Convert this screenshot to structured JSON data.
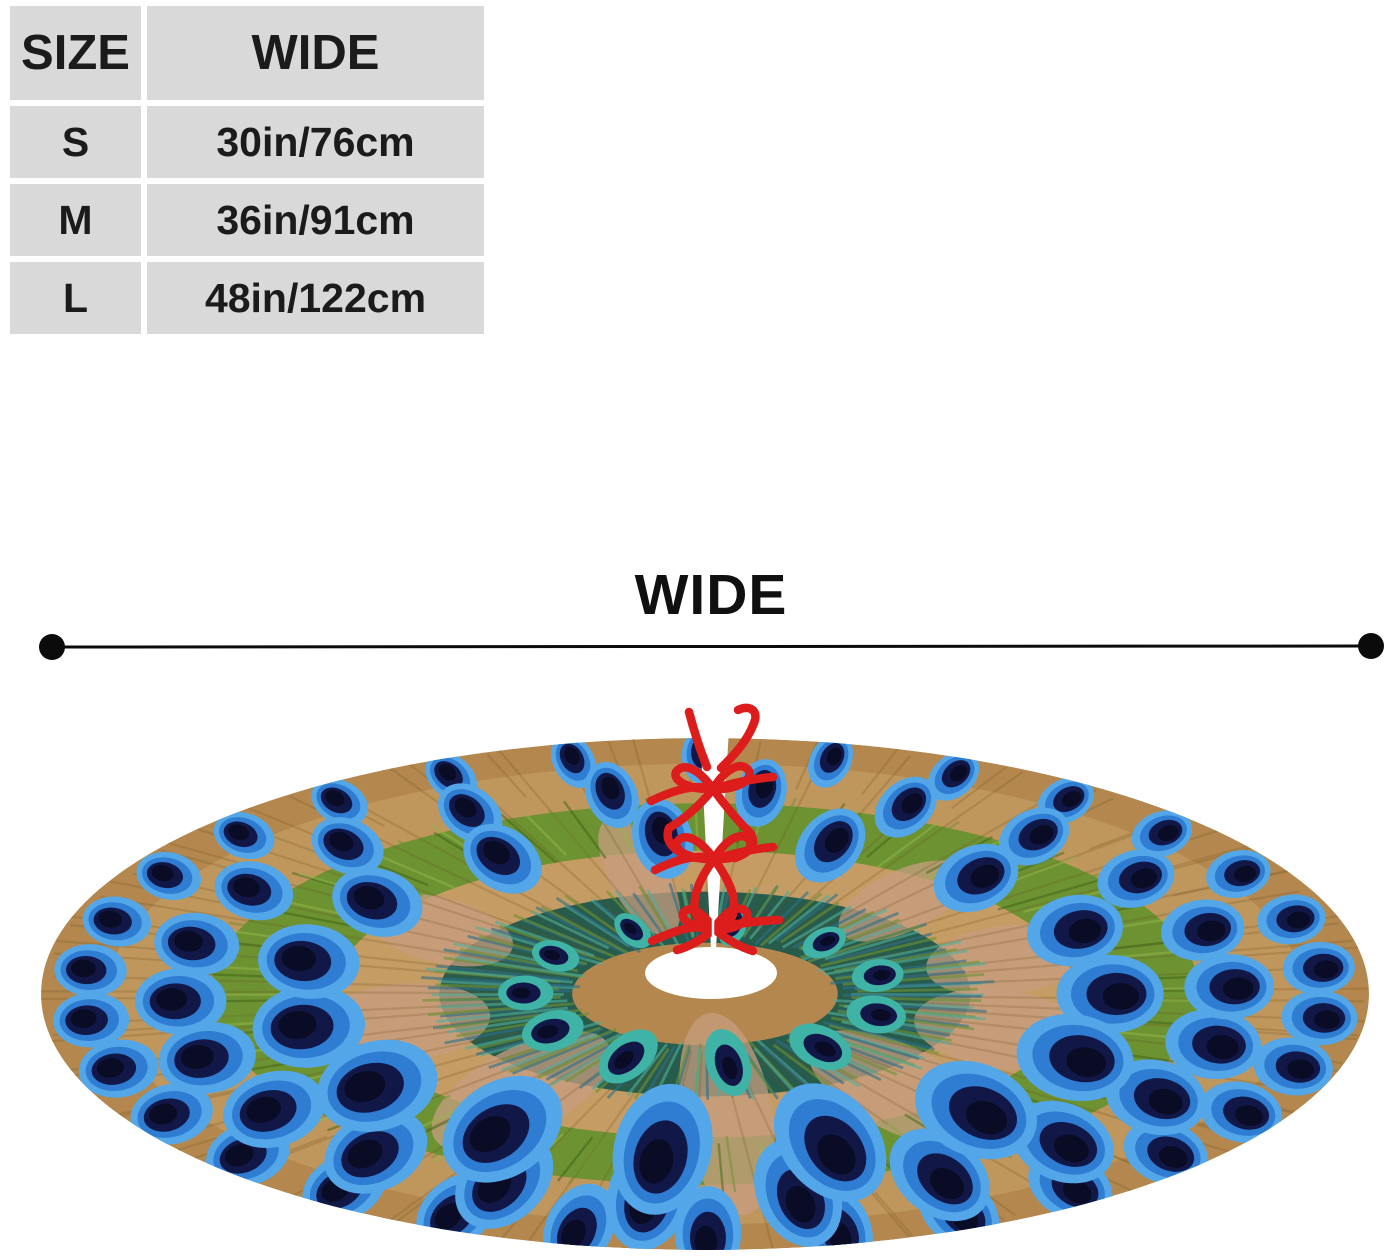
{
  "size_table": {
    "headers": [
      "SIZE",
      "WIDE"
    ],
    "rows": [
      {
        "size": "S",
        "wide": "30in/76cm"
      },
      {
        "size": "M",
        "wide": "36in/91cm"
      },
      {
        "size": "L",
        "wide": "48in/122cm"
      }
    ]
  },
  "measurement": {
    "label": "WIDE"
  },
  "product": {
    "type": "christmas-tree-skirt",
    "pattern": "peacock-feathers",
    "features": [
      "center-hole",
      "back-slit",
      "red-ribbon-ties"
    ],
    "colors": {
      "table_cell_bg": "#d9d9d9",
      "table_text": "#1b1b1b",
      "line_black": "#0b0b0b",
      "ribbon_red": "#dd1c1c",
      "hole_white": "#ffffff",
      "base_tan": "#b3874e",
      "tan_light": "#c59c63",
      "pink_patch": "#c79e80",
      "green_band": "#6d9232",
      "green_light": "#93b84a",
      "green_dark": "#3f6418",
      "teal_band": "#275c4d",
      "teal_streak": "#4fae9b",
      "blue_streak": "#2e6f8a",
      "shaft_olive": "#6b5222",
      "eye_blue": "#2f7dd2",
      "eye_blue_light": "#53a7e8",
      "eye_navy": "#111848",
      "eye_black": "#0a0c26",
      "eye_teal_ring": "#3fb3a6"
    }
  }
}
